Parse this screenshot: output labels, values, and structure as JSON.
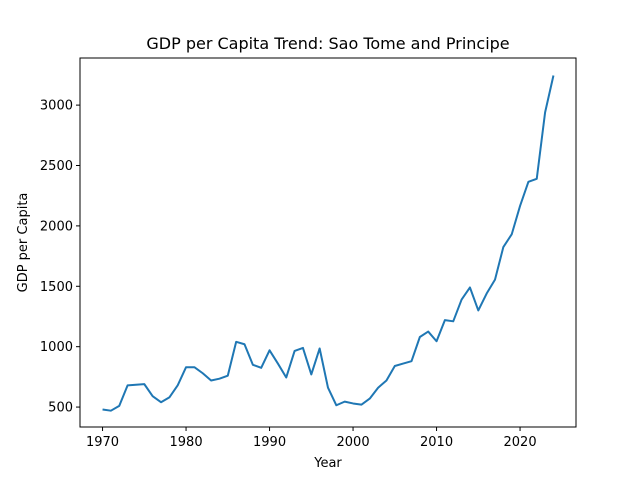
{
  "chart_data": {
    "type": "line",
    "title": "GDP per Capita Trend: Sao Tome and Principe",
    "xlabel": "Year",
    "ylabel": "GDP per Capita",
    "xlim": [
      1967.3,
      2026.7
    ],
    "ylim": [
      335,
      3390
    ],
    "x_ticks": [
      1970,
      1980,
      1990,
      2000,
      2010,
      2020
    ],
    "y_ticks": [
      500,
      1000,
      1500,
      2000,
      2500,
      3000
    ],
    "grid": false,
    "color": "#1f77b4",
    "series": [
      {
        "x": [
          1970,
          1971,
          1972,
          1973,
          1974,
          1975,
          1976,
          1977,
          1978,
          1979,
          1980,
          1981,
          1982,
          1983,
          1984,
          1985,
          1986,
          1987,
          1988,
          1989,
          1990,
          1991,
          1992,
          1993,
          1994,
          1995,
          1996,
          1997,
          1998,
          1999,
          2000,
          2001,
          2002,
          2003,
          2004,
          2005,
          2006,
          2007,
          2008,
          2009,
          2010,
          2011,
          2012,
          2013,
          2014,
          2015,
          2016,
          2017,
          2018,
          2019,
          2020,
          2021,
          2022,
          2023,
          2024
        ],
        "values": [
          480,
          470,
          510,
          680,
          685,
          690,
          590,
          540,
          580,
          680,
          830,
          830,
          780,
          720,
          735,
          760,
          1040,
          1020,
          850,
          825,
          970,
          860,
          745,
          965,
          990,
          770,
          985,
          660,
          515,
          545,
          530,
          520,
          570,
          660,
          720,
          840,
          860,
          880,
          1080,
          1125,
          1045,
          1220,
          1210,
          1390,
          1490,
          1300,
          1440,
          1555,
          1825,
          1930,
          2165,
          2365,
          2390,
          2940,
          3245
        ]
      }
    ]
  }
}
